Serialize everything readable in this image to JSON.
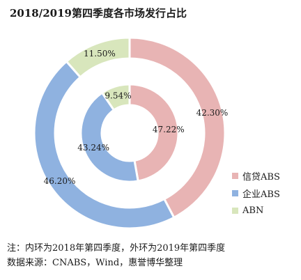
{
  "title": "2018/2019第四季度各市场发行占比",
  "notes": {
    "line1": "注：内环为2018年第四季度，外环为2019年第四季度",
    "line2": "数据来源：CNABS，Wind，惠誉博华整理"
  },
  "chart_data": {
    "type": "pie",
    "variant": "nested-donut",
    "categories": [
      "信贷ABS",
      "企业ABS",
      "ABN"
    ],
    "colors": [
      "#e8b4b4",
      "#8fb2e0",
      "#d8e6bc"
    ],
    "series": [
      {
        "ring": "outer",
        "values": [
          42.3,
          46.2,
          11.5
        ],
        "labels": [
          "42.30%",
          "46.20%",
          "11.50%"
        ]
      },
      {
        "ring": "inner",
        "values": [
          47.22,
          43.24,
          9.54
        ],
        "labels": [
          "47.22%",
          "43.24%",
          "9.54%"
        ]
      }
    ],
    "legend_position": "right"
  }
}
